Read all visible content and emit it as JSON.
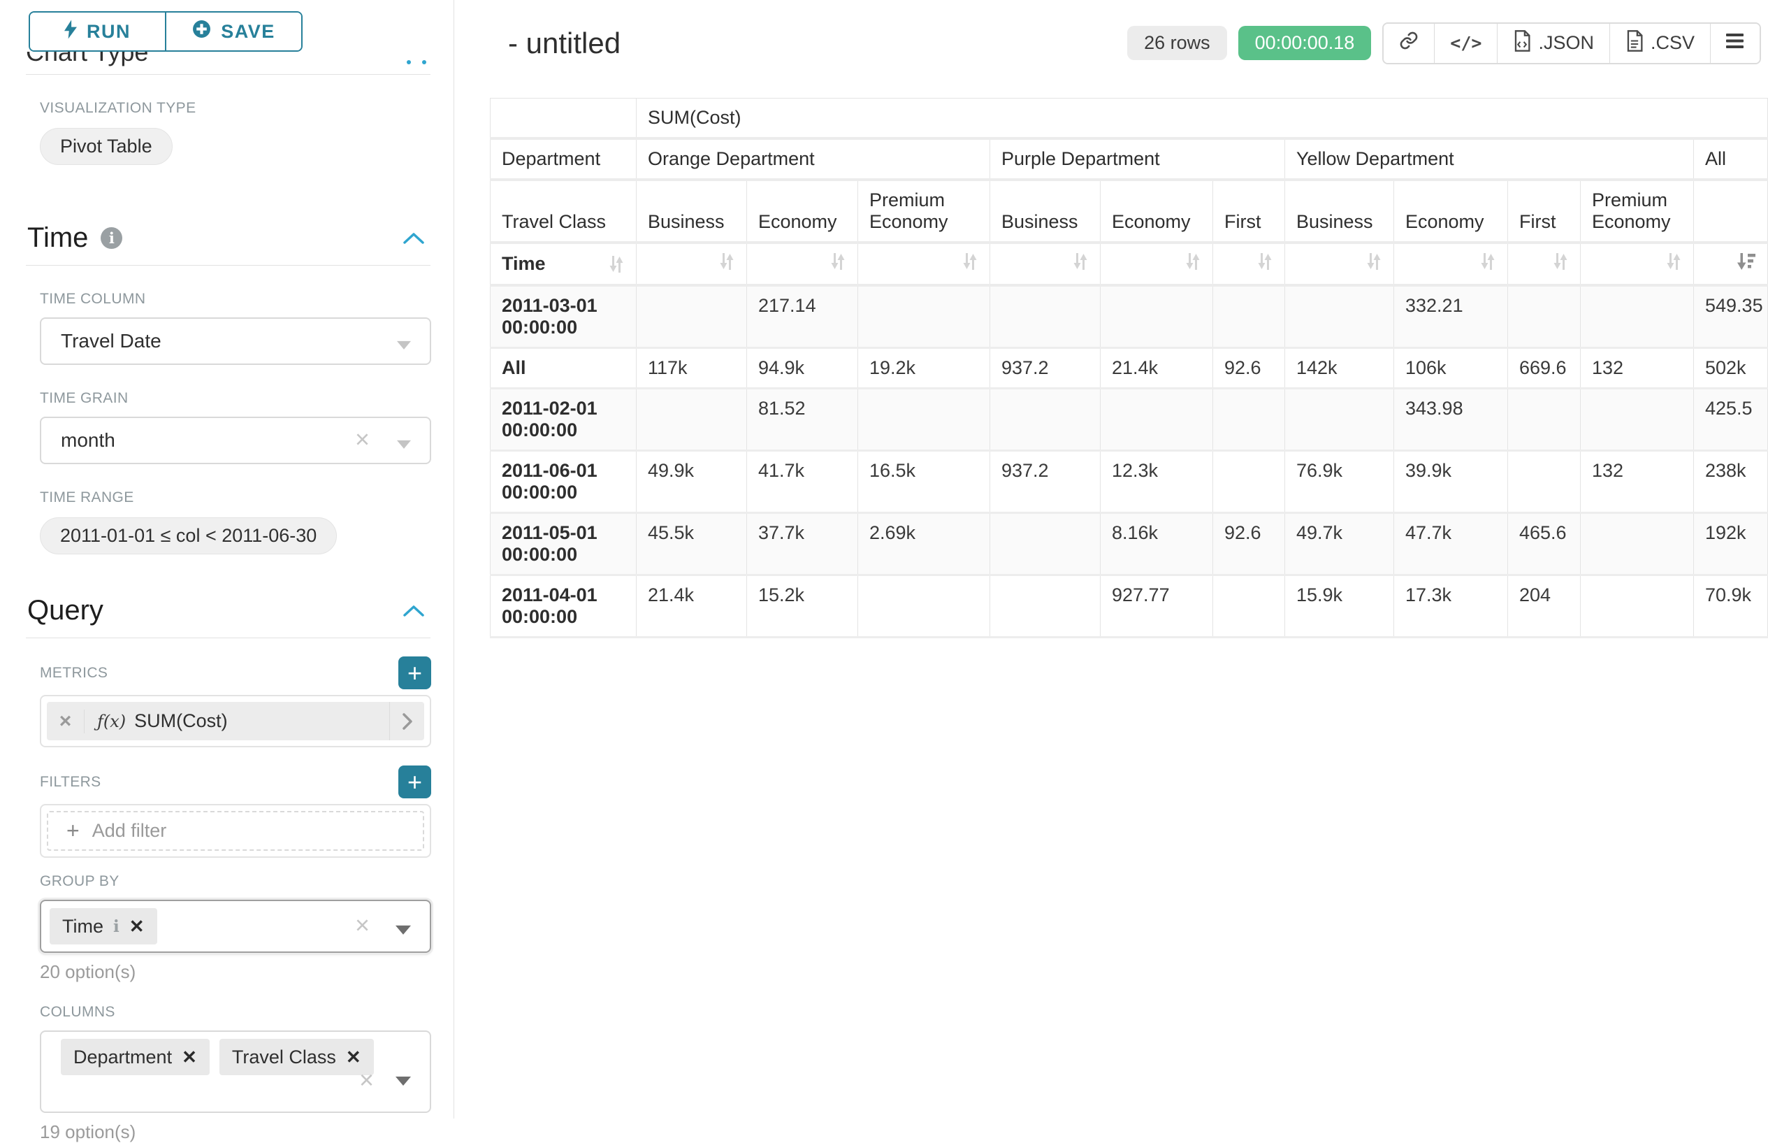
{
  "colors": {
    "accent": "#27809a",
    "green": "#5ac189",
    "caret_blue": "#2fa5cf"
  },
  "sidebar": {
    "run_button": "RUN",
    "save_button": "SAVE",
    "chart_type_heading": "Chart Type",
    "visualization_type_label": "VISUALIZATION TYPE",
    "visualization_type_value": "Pivot Table",
    "time": {
      "title": "Time",
      "column_label": "TIME COLUMN",
      "column_value": "Travel Date",
      "grain_label": "TIME GRAIN",
      "grain_value": "month",
      "range_label": "TIME RANGE",
      "range_value": "2011-01-01 ≤ col < 2011-06-30"
    },
    "query": {
      "title": "Query",
      "metrics_label": "METRICS",
      "metric_fx": "ƒ(x)",
      "metric_value": "SUM(Cost)",
      "filters_label": "FILTERS",
      "add_filter_label": "Add filter",
      "group_by_label": "GROUP BY",
      "group_by_values": [
        "Time"
      ],
      "group_by_hint": "20 option(s)",
      "columns_label": "COLUMNS",
      "columns_values": [
        "Department",
        "Travel Class"
      ],
      "columns_hint": "19 option(s)"
    }
  },
  "header": {
    "title": "- untitled",
    "rows_badge": "26 rows",
    "timer": "00:00:00.18",
    "json_label": ".JSON",
    "csv_label": ".CSV"
  },
  "table": {
    "metric_header": "SUM(Cost)",
    "dim_row1": "Department",
    "dim_row2": "Travel Class",
    "dim_row3": "Time",
    "groups": [
      {
        "label": "Orange Department",
        "columns": [
          "Business",
          "Economy",
          "Premium Economy"
        ]
      },
      {
        "label": "Purple Department",
        "columns": [
          "Business",
          "Economy",
          "First"
        ]
      },
      {
        "label": "Yellow Department",
        "columns": [
          "Business",
          "Economy",
          "First",
          "Premium Economy"
        ]
      },
      {
        "label": "All",
        "columns": [
          ""
        ]
      }
    ],
    "sorted_column_index": 10,
    "rows": [
      {
        "label": "2011-03-01 00:00:00",
        "values": [
          "",
          "217.14",
          "",
          "",
          "",
          "",
          "",
          "332.21",
          "",
          "",
          "549.35"
        ]
      },
      {
        "label": "All",
        "values": [
          "117k",
          "94.9k",
          "19.2k",
          "937.2",
          "21.4k",
          "92.6",
          "142k",
          "106k",
          "669.6",
          "132",
          "502k"
        ]
      },
      {
        "label": "2011-02-01 00:00:00",
        "values": [
          "",
          "81.52",
          "",
          "",
          "",
          "",
          "",
          "343.98",
          "",
          "",
          "425.5"
        ]
      },
      {
        "label": "2011-06-01 00:00:00",
        "values": [
          "49.9k",
          "41.7k",
          "16.5k",
          "937.2",
          "12.3k",
          "",
          "76.9k",
          "39.9k",
          "",
          "132",
          "238k"
        ]
      },
      {
        "label": "2011-05-01 00:00:00",
        "values": [
          "45.5k",
          "37.7k",
          "2.69k",
          "",
          "8.16k",
          "92.6",
          "49.7k",
          "47.7k",
          "465.6",
          "",
          "192k"
        ]
      },
      {
        "label": "2011-04-01 00:00:00",
        "values": [
          "21.4k",
          "15.2k",
          "",
          "",
          "927.77",
          "",
          "15.9k",
          "17.3k",
          "204",
          "",
          "70.9k"
        ]
      }
    ]
  }
}
